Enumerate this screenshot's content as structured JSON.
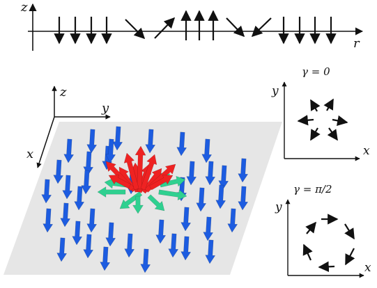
{
  "profile": {
    "axis_vertical": "z",
    "axis_horizontal": "r"
  },
  "texture_3d": {
    "axis_x": "x",
    "axis_y": "y",
    "axis_z": "z",
    "colors": {
      "background_spin": "#1f5fe0",
      "core_spin": "#ee2020",
      "ring_spin": "#2fd090",
      "plane": "#e6e6e6"
    }
  },
  "panel_radial": {
    "title": "γ = 0",
    "axis_x": "x",
    "axis_y": "y"
  },
  "panel_tangential": {
    "title": "γ = π/2",
    "axis_x": "x",
    "axis_y": "y"
  }
}
